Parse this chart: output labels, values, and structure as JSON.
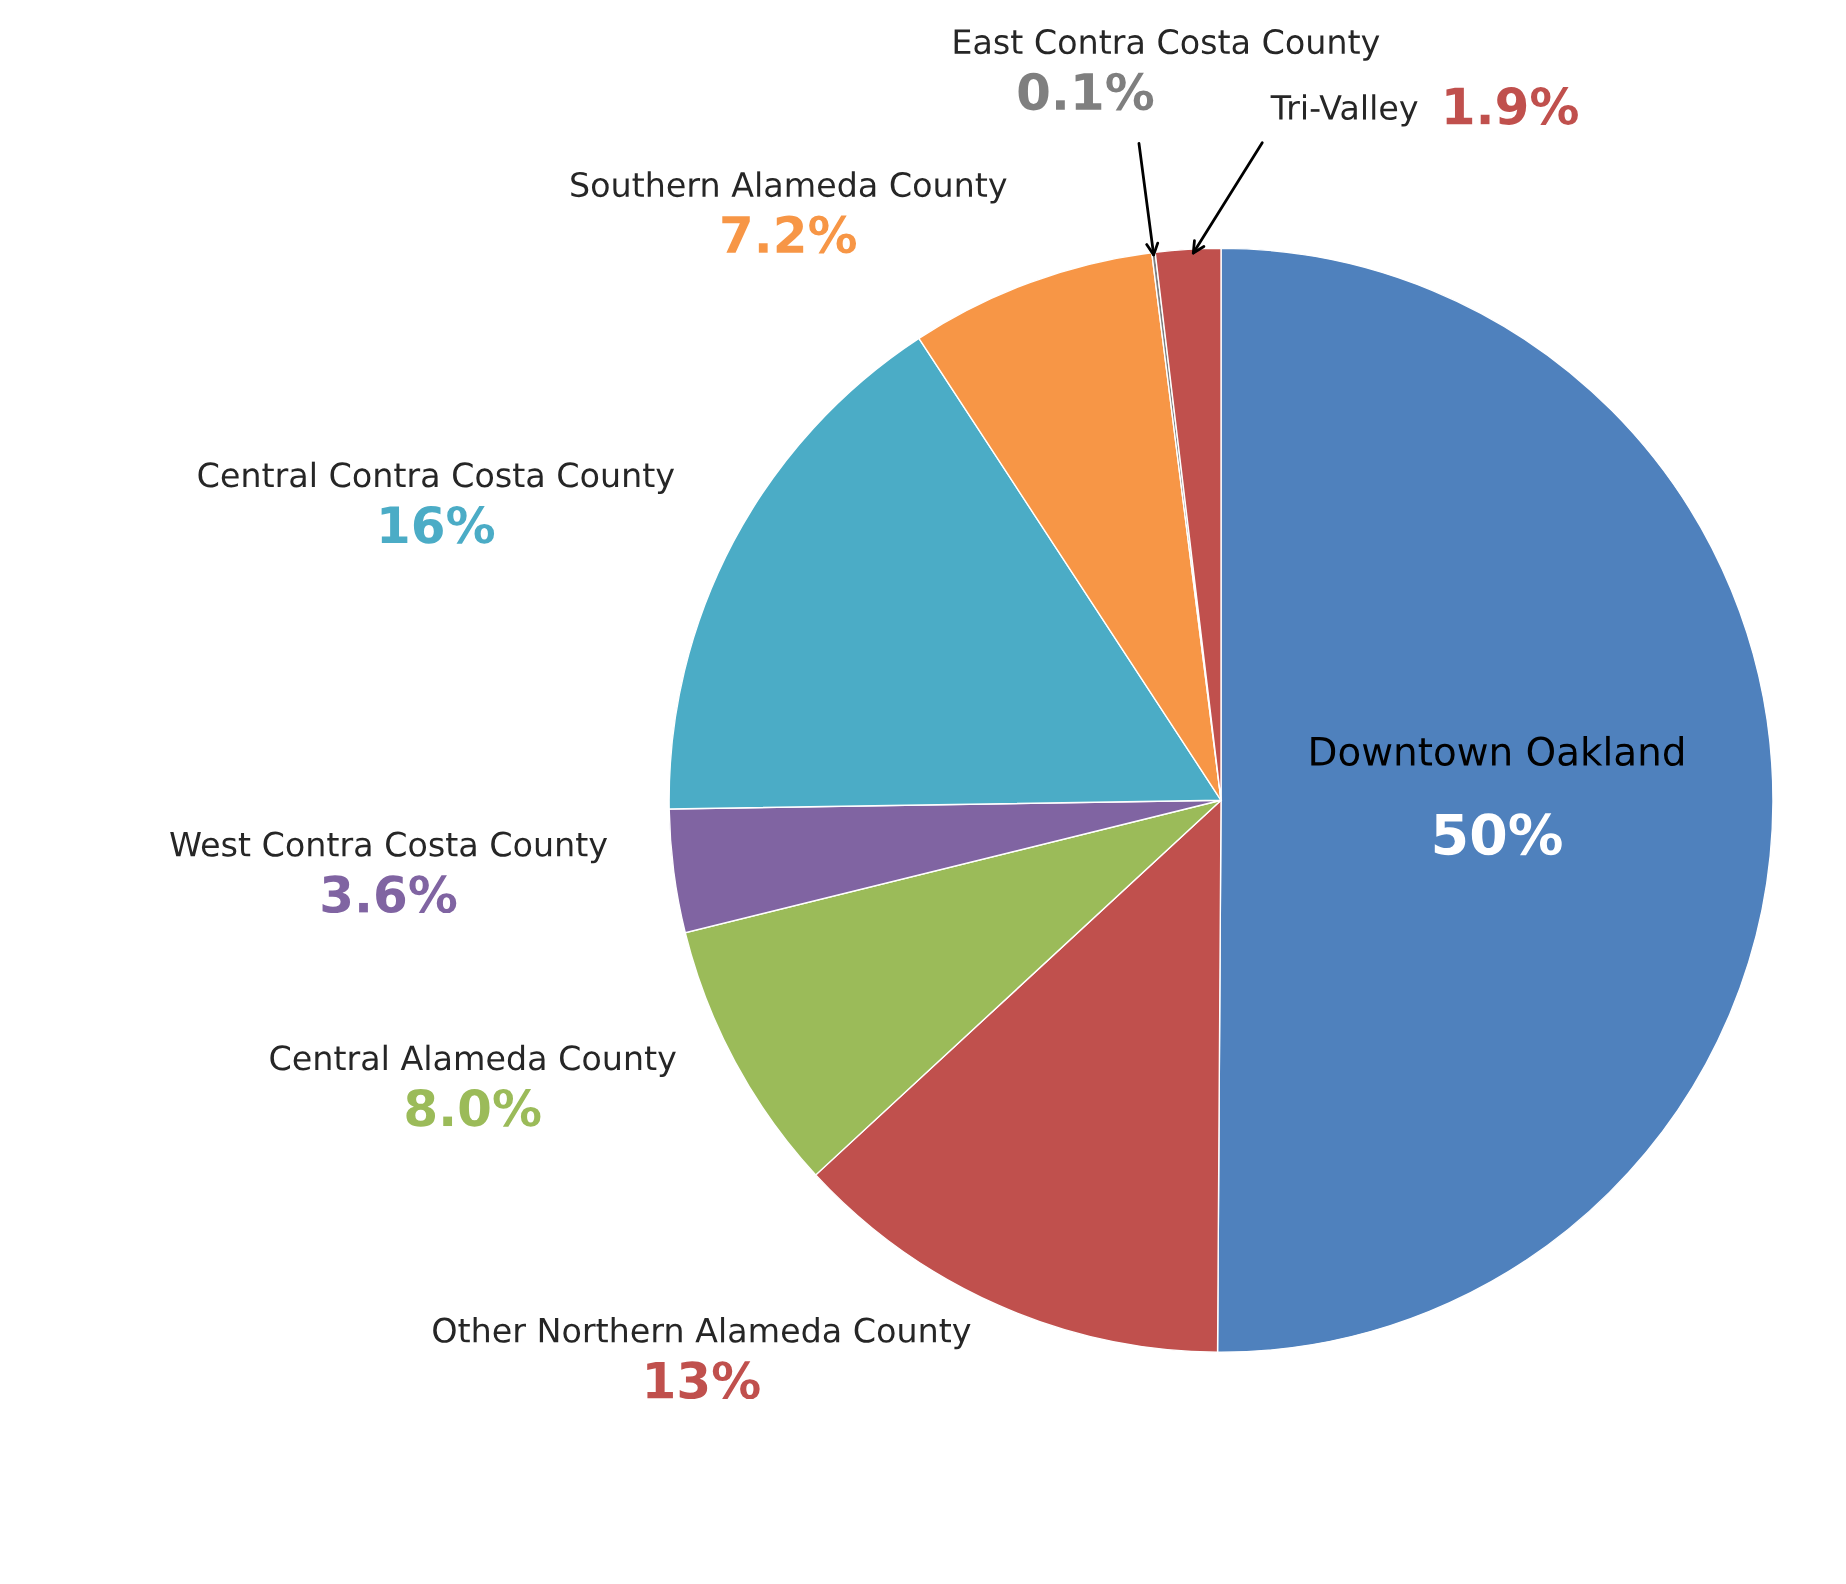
{
  "chart_data": {
    "type": "pie",
    "categories": [
      "Downtown Oakland",
      "Other Northern Alameda County",
      "Central Alameda County",
      "West Contra Costa County",
      "Central Contra Costa County",
      "Southern Alameda County",
      "East Contra Costa County",
      "Tri-Valley"
    ],
    "values": [
      50,
      13,
      8.0,
      3.6,
      16,
      7.2,
      0.1,
      1.9
    ],
    "value_labels": [
      "50%",
      "13%",
      "8.0%",
      "3.6%",
      "16%",
      "7.2%",
      "0.1%",
      "1.9%"
    ],
    "colors": [
      "#4f81bd",
      "#c0504d",
      "#9bbb59",
      "#8064a2",
      "#4bacc6",
      "#f79646",
      "#7f7f7f",
      "#c0504d"
    ],
    "legend": false
  }
}
